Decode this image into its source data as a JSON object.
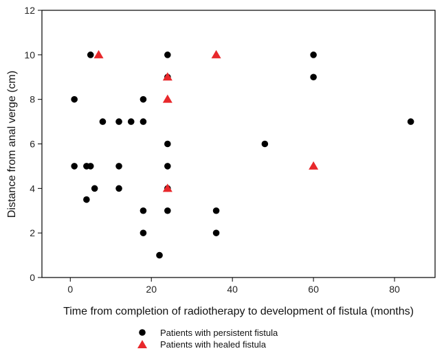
{
  "chart_data": {
    "type": "scatter",
    "xlabel": "Time from completion of radiotherapy to development of fistula (months)",
    "ylabel": "Distance from anal verge (cm)",
    "xlim": [
      -7,
      90
    ],
    "ylim": [
      0,
      12
    ],
    "x_ticks": [
      0,
      20,
      40,
      60,
      80
    ],
    "y_ticks": [
      0,
      2,
      4,
      6,
      8,
      10,
      12
    ],
    "grid": false,
    "legend_position": "bottom",
    "series": [
      {
        "name": "Patients with persistent fistula",
        "marker": "circle",
        "color": "#000000",
        "points": [
          {
            "x": 1,
            "y": 8
          },
          {
            "x": 1,
            "y": 5
          },
          {
            "x": 4,
            "y": 5
          },
          {
            "x": 4,
            "y": 3.5
          },
          {
            "x": 5,
            "y": 10
          },
          {
            "x": 5,
            "y": 5
          },
          {
            "x": 6,
            "y": 4
          },
          {
            "x": 8,
            "y": 7
          },
          {
            "x": 12,
            "y": 7
          },
          {
            "x": 12,
            "y": 5
          },
          {
            "x": 12,
            "y": 4
          },
          {
            "x": 15,
            "y": 7
          },
          {
            "x": 18,
            "y": 8
          },
          {
            "x": 18,
            "y": 7
          },
          {
            "x": 18,
            "y": 3
          },
          {
            "x": 18,
            "y": 2
          },
          {
            "x": 22,
            "y": 1
          },
          {
            "x": 24,
            "y": 10
          },
          {
            "x": 24,
            "y": 9
          },
          {
            "x": 24,
            "y": 6
          },
          {
            "x": 24,
            "y": 5
          },
          {
            "x": 24,
            "y": 4
          },
          {
            "x": 24,
            "y": 3
          },
          {
            "x": 36,
            "y": 3
          },
          {
            "x": 36,
            "y": 2
          },
          {
            "x": 48,
            "y": 6
          },
          {
            "x": 60,
            "y": 10
          },
          {
            "x": 60,
            "y": 9
          },
          {
            "x": 84,
            "y": 7
          }
        ]
      },
      {
        "name": "Patients with healed fistula",
        "marker": "triangle",
        "color": "#e8282b",
        "points": [
          {
            "x": 7,
            "y": 10
          },
          {
            "x": 24,
            "y": 9
          },
          {
            "x": 24,
            "y": 8
          },
          {
            "x": 24,
            "y": 4
          },
          {
            "x": 36,
            "y": 10
          },
          {
            "x": 60,
            "y": 5
          }
        ]
      }
    ]
  }
}
